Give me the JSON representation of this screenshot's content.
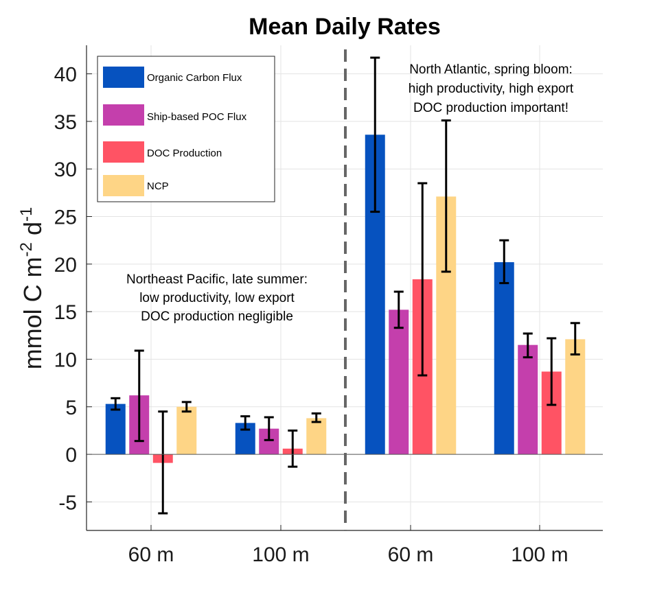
{
  "chart_data": {
    "type": "bar",
    "title": "Mean Daily Rates",
    "ylabel": "mmol C m-2 d-1",
    "ylabel_parts": {
      "base": "mmol C m",
      "exp1": "-2",
      "mid": " d",
      "exp2": "-1"
    },
    "xlabel": "",
    "ylim": [
      -8,
      43
    ],
    "yticks": [
      -5,
      0,
      5,
      10,
      15,
      20,
      25,
      30,
      35,
      40
    ],
    "categories": [
      "60 m",
      "100 m",
      "60 m",
      "100 m"
    ],
    "grid": true,
    "legend_position": "top-left",
    "series": [
      {
        "name": "Organic Carbon Flux",
        "color": "#0652BF",
        "values": [
          5.3,
          3.3,
          33.6,
          20.2
        ],
        "err_low": [
          4.7,
          2.6,
          25.5,
          18.0
        ],
        "err_high": [
          5.9,
          4.0,
          41.7,
          22.5
        ]
      },
      {
        "name": "Ship-based POC Flux",
        "color": "#C43FAC",
        "values": [
          6.2,
          2.7,
          15.2,
          11.5
        ],
        "err_low": [
          1.4,
          1.5,
          13.3,
          10.2
        ],
        "err_high": [
          10.9,
          3.9,
          17.1,
          12.7
        ]
      },
      {
        "name": "DOC Production",
        "color": "#FF5364",
        "values": [
          -0.9,
          0.6,
          18.4,
          8.7
        ],
        "err_low": [
          -6.2,
          -1.3,
          8.3,
          5.2
        ],
        "err_high": [
          4.5,
          2.5,
          28.5,
          12.2
        ]
      },
      {
        "name": "NCP",
        "color": "#FED586",
        "values": [
          5.0,
          3.8,
          27.1,
          12.1
        ],
        "err_low": [
          4.5,
          3.4,
          19.2,
          10.5
        ],
        "err_high": [
          5.5,
          4.3,
          35.1,
          13.8
        ]
      }
    ],
    "annotations": [
      {
        "lines": [
          "Northeast Pacific, late summer:",
          "low productivity, low export",
          "DOC production negligible"
        ]
      },
      {
        "lines": [
          "North Atlantic, spring bloom:",
          "high productivity, high export",
          "DOC production important!"
        ]
      }
    ]
  }
}
